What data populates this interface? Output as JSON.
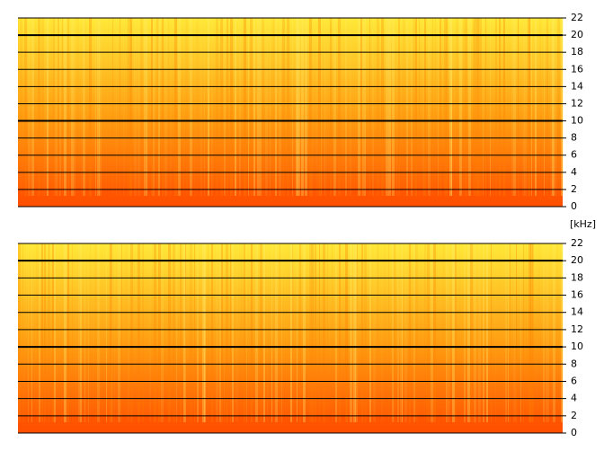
{
  "chart_data": [
    {
      "type": "spectrogram",
      "ylabel": "[kHz]",
      "ylim": [
        0,
        22
      ],
      "yticks": [
        0,
        2,
        4,
        6,
        8,
        10,
        12,
        14,
        16,
        18,
        20,
        22
      ],
      "grid": true,
      "colormap": [
        "#ff5000",
        "#ff9a10",
        "#ffe838"
      ]
    },
    {
      "type": "spectrogram",
      "ylim": [
        0,
        22
      ],
      "yticks": [
        0,
        2,
        4,
        6,
        8,
        10,
        12,
        14,
        16,
        18,
        20,
        22
      ],
      "grid": true,
      "colormap": [
        "#ff5000",
        "#ff9a10",
        "#ffe838"
      ]
    }
  ]
}
